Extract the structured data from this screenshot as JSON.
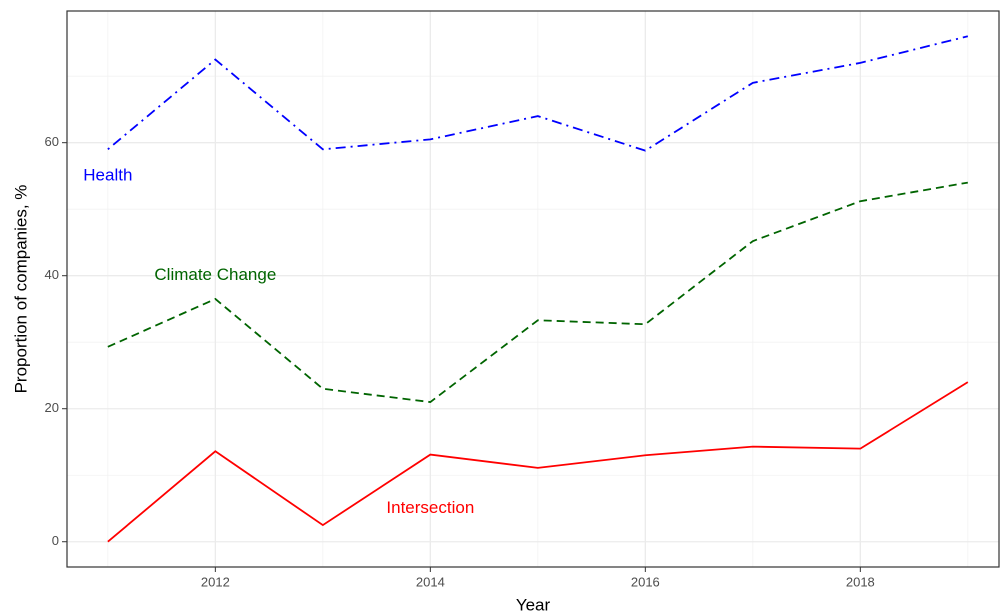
{
  "chart_data": {
    "type": "line",
    "x": [
      2011,
      2012,
      2013,
      2014,
      2015,
      2016,
      2017,
      2018,
      2019
    ],
    "series": [
      {
        "name": "Health",
        "color": "#0000ff",
        "linetype": "dotdash",
        "values": [
          59,
          72.5,
          59,
          60.5,
          64,
          58.8,
          69,
          72,
          76
        ]
      },
      {
        "name": "Climate Change",
        "color": "#006400",
        "linetype": "dashed",
        "values": [
          29.3,
          36.5,
          23,
          21,
          33.3,
          32.7,
          45.2,
          51.2,
          54
        ]
      },
      {
        "name": "Intersection",
        "color": "#ff0000",
        "linetype": "solid",
        "values": [
          0,
          13.6,
          2.5,
          13.1,
          11.1,
          13,
          14.3,
          14,
          24
        ]
      }
    ],
    "labels": [
      {
        "series": 0,
        "x": 2011,
        "y": 55
      },
      {
        "series": 1,
        "x": 2012,
        "y": 40
      },
      {
        "series": 2,
        "x": 2014,
        "y": 5
      }
    ],
    "xlabel": "Year",
    "ylabel": "Proportion of companies, %",
    "xlim": [
      2010.62,
      2019.29
    ],
    "xticks": [
      2012,
      2014,
      2016,
      2018
    ],
    "ylim": [
      -3.8,
      79.8
    ],
    "yticks": [
      0,
      20,
      40,
      60
    ],
    "grid": true,
    "minor_grid": true
  }
}
